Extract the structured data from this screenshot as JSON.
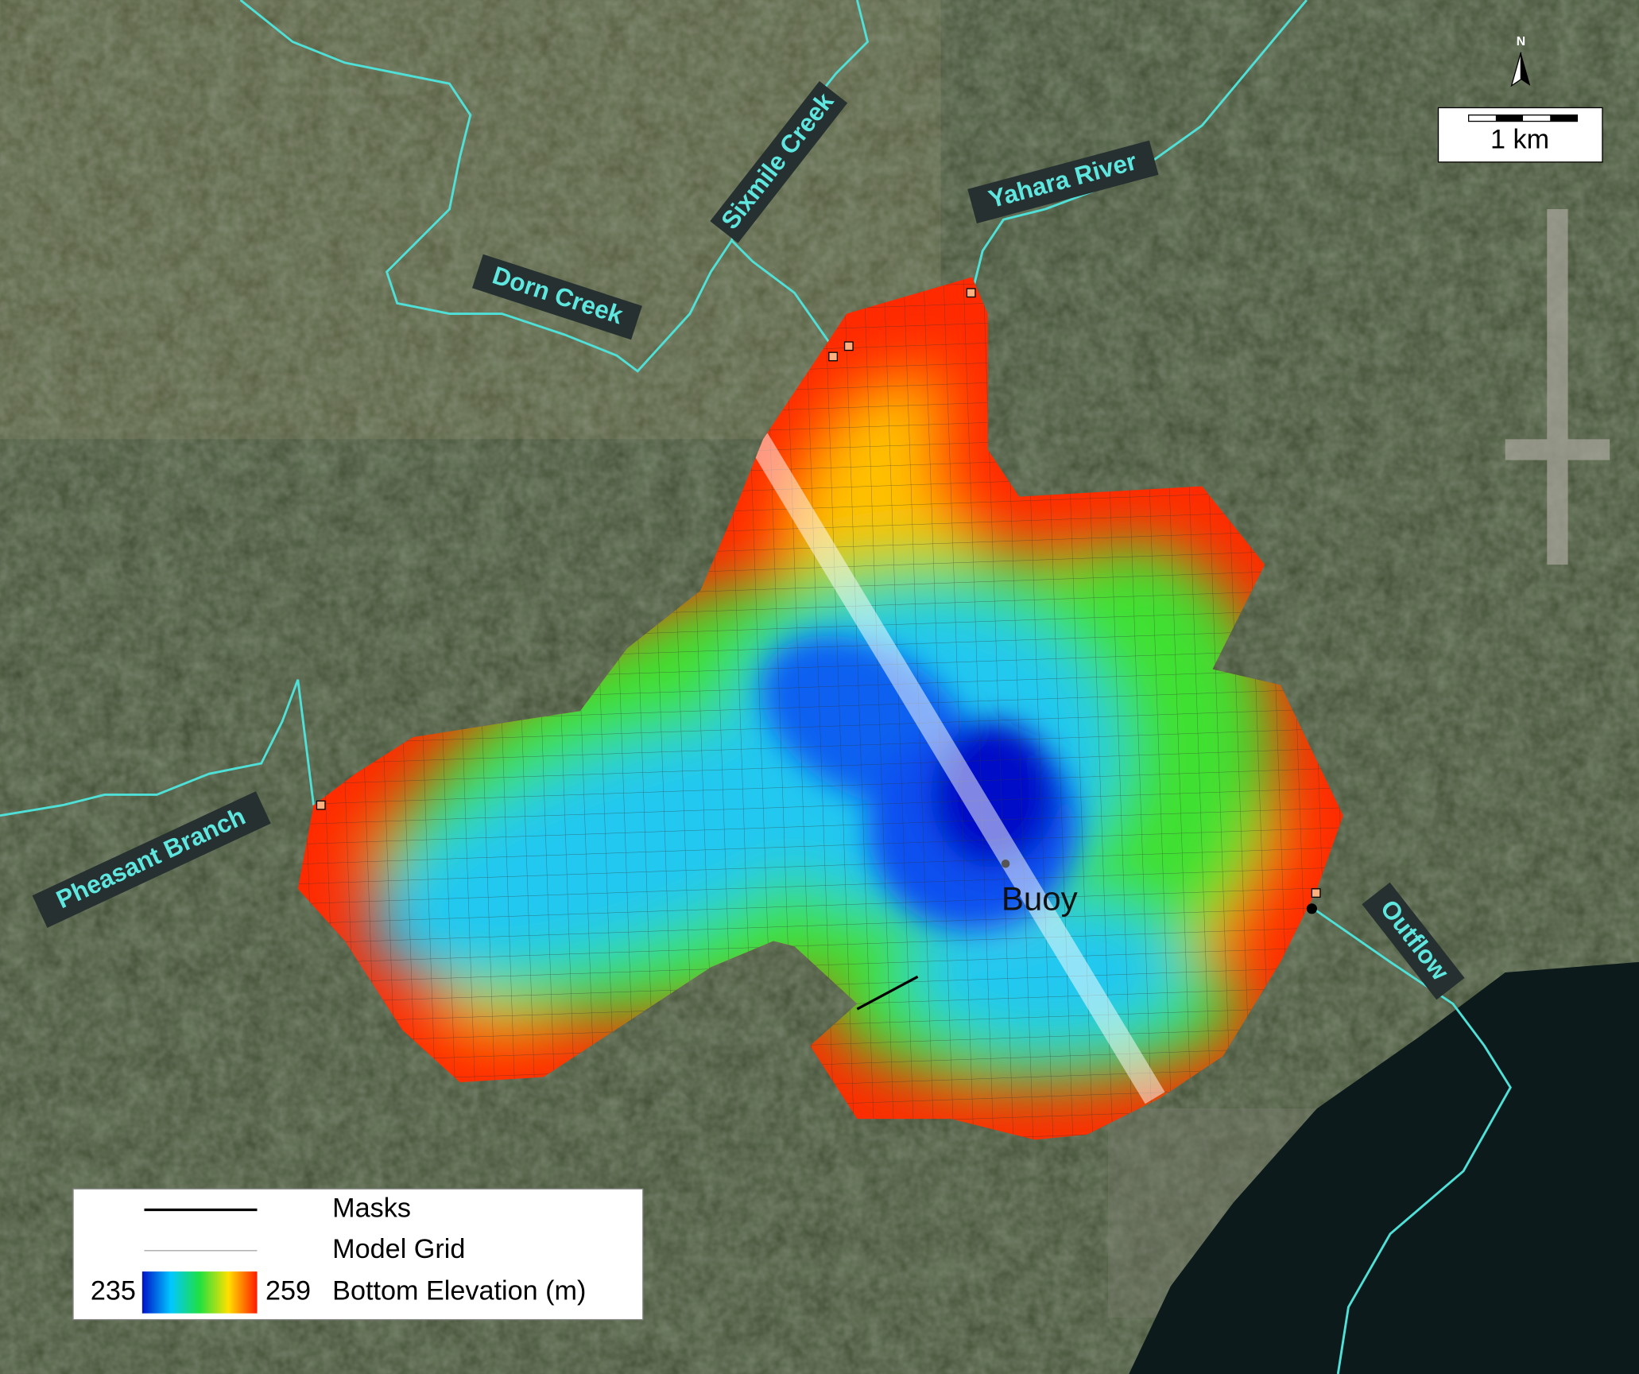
{
  "map": {
    "rivers": [
      "Sixmile Creek",
      "Yahara River",
      "Dorn Creek",
      "Pheasant Branch",
      "Outflow"
    ],
    "buoy": "Buoy",
    "north": "N",
    "scale_bar": "1 km",
    "legend": {
      "masks": "Masks",
      "model_grid": "Model Grid",
      "colorbar_min": 235,
      "colorbar_max": 259,
      "colorbar_label": "Bottom Elevation (m)"
    }
  }
}
